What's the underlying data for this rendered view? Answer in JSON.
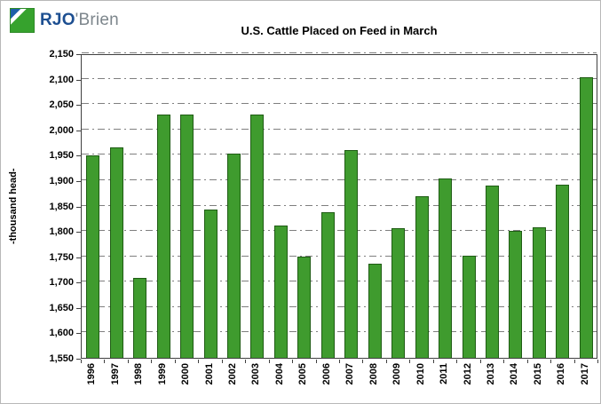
{
  "logo": {
    "text_primary": "RJO",
    "text_secondary": "'Brien",
    "colors": {
      "green": "#36a22d",
      "blue": "#1d5fa8",
      "text_blue": "#1d4f91",
      "text_gray": "#7d868c"
    }
  },
  "chart_data": {
    "type": "bar",
    "title": "U.S. Cattle Placed on Feed in March",
    "xlabel": "",
    "ylabel": "-thousand head-",
    "ylim": [
      1550,
      2150
    ],
    "ytick_step": 50,
    "ytick_labels": [
      "1,550",
      "1,600",
      "1,650",
      "1,700",
      "1,750",
      "1,800",
      "1,850",
      "1,900",
      "1,950",
      "2,000",
      "2,050",
      "2,100",
      "2,150"
    ],
    "grid": true,
    "gridline_style": "dash-dot",
    "legend": "none",
    "bar_color": "#3f9b2e",
    "bar_border_color": "#1f5c14",
    "categories": [
      "1996",
      "1997",
      "1998",
      "1999",
      "2000",
      "2001",
      "2002",
      "2003",
      "2004",
      "2005",
      "2006",
      "2007",
      "2008",
      "2009",
      "2010",
      "2011",
      "2012",
      "2013",
      "2014",
      "2015",
      "2016",
      "2017"
    ],
    "values": [
      1948,
      1965,
      1708,
      2030,
      2030,
      1843,
      1952,
      2030,
      1810,
      1750,
      1837,
      1960,
      1735,
      1806,
      1868,
      1903,
      1751,
      1889,
      1800,
      1808,
      1892,
      2102
    ]
  }
}
